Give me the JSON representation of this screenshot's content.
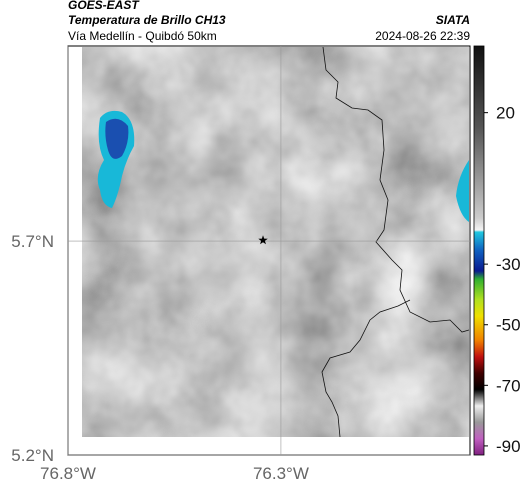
{
  "header": {
    "left_top": "GOES-EAST",
    "left_title": "Temperatura de Brillo CH13",
    "left_sub": "Vía Medellín - Quibdó 50km",
    "right_top": "SIATA",
    "right_sub": "2024-08-26 22:39"
  },
  "map": {
    "xlim": [
      -76.8,
      -75.856
    ],
    "ylim": [
      5.2,
      6.156
    ],
    "xticks": [
      {
        "value": -76.8,
        "label": "76.8°W"
      },
      {
        "value": -76.3,
        "label": "76.3°W"
      }
    ],
    "yticks": [
      {
        "value": 5.7,
        "label": "5.7°N"
      },
      {
        "value": 5.2,
        "label": "5.2°N"
      }
    ],
    "marker": {
      "lon": -76.342,
      "lat": 5.702
    }
  },
  "colorbar": {
    "lim": [
      -93,
      42
    ],
    "ticks": [
      20,
      -30,
      -50,
      -70,
      -90
    ]
  }
}
